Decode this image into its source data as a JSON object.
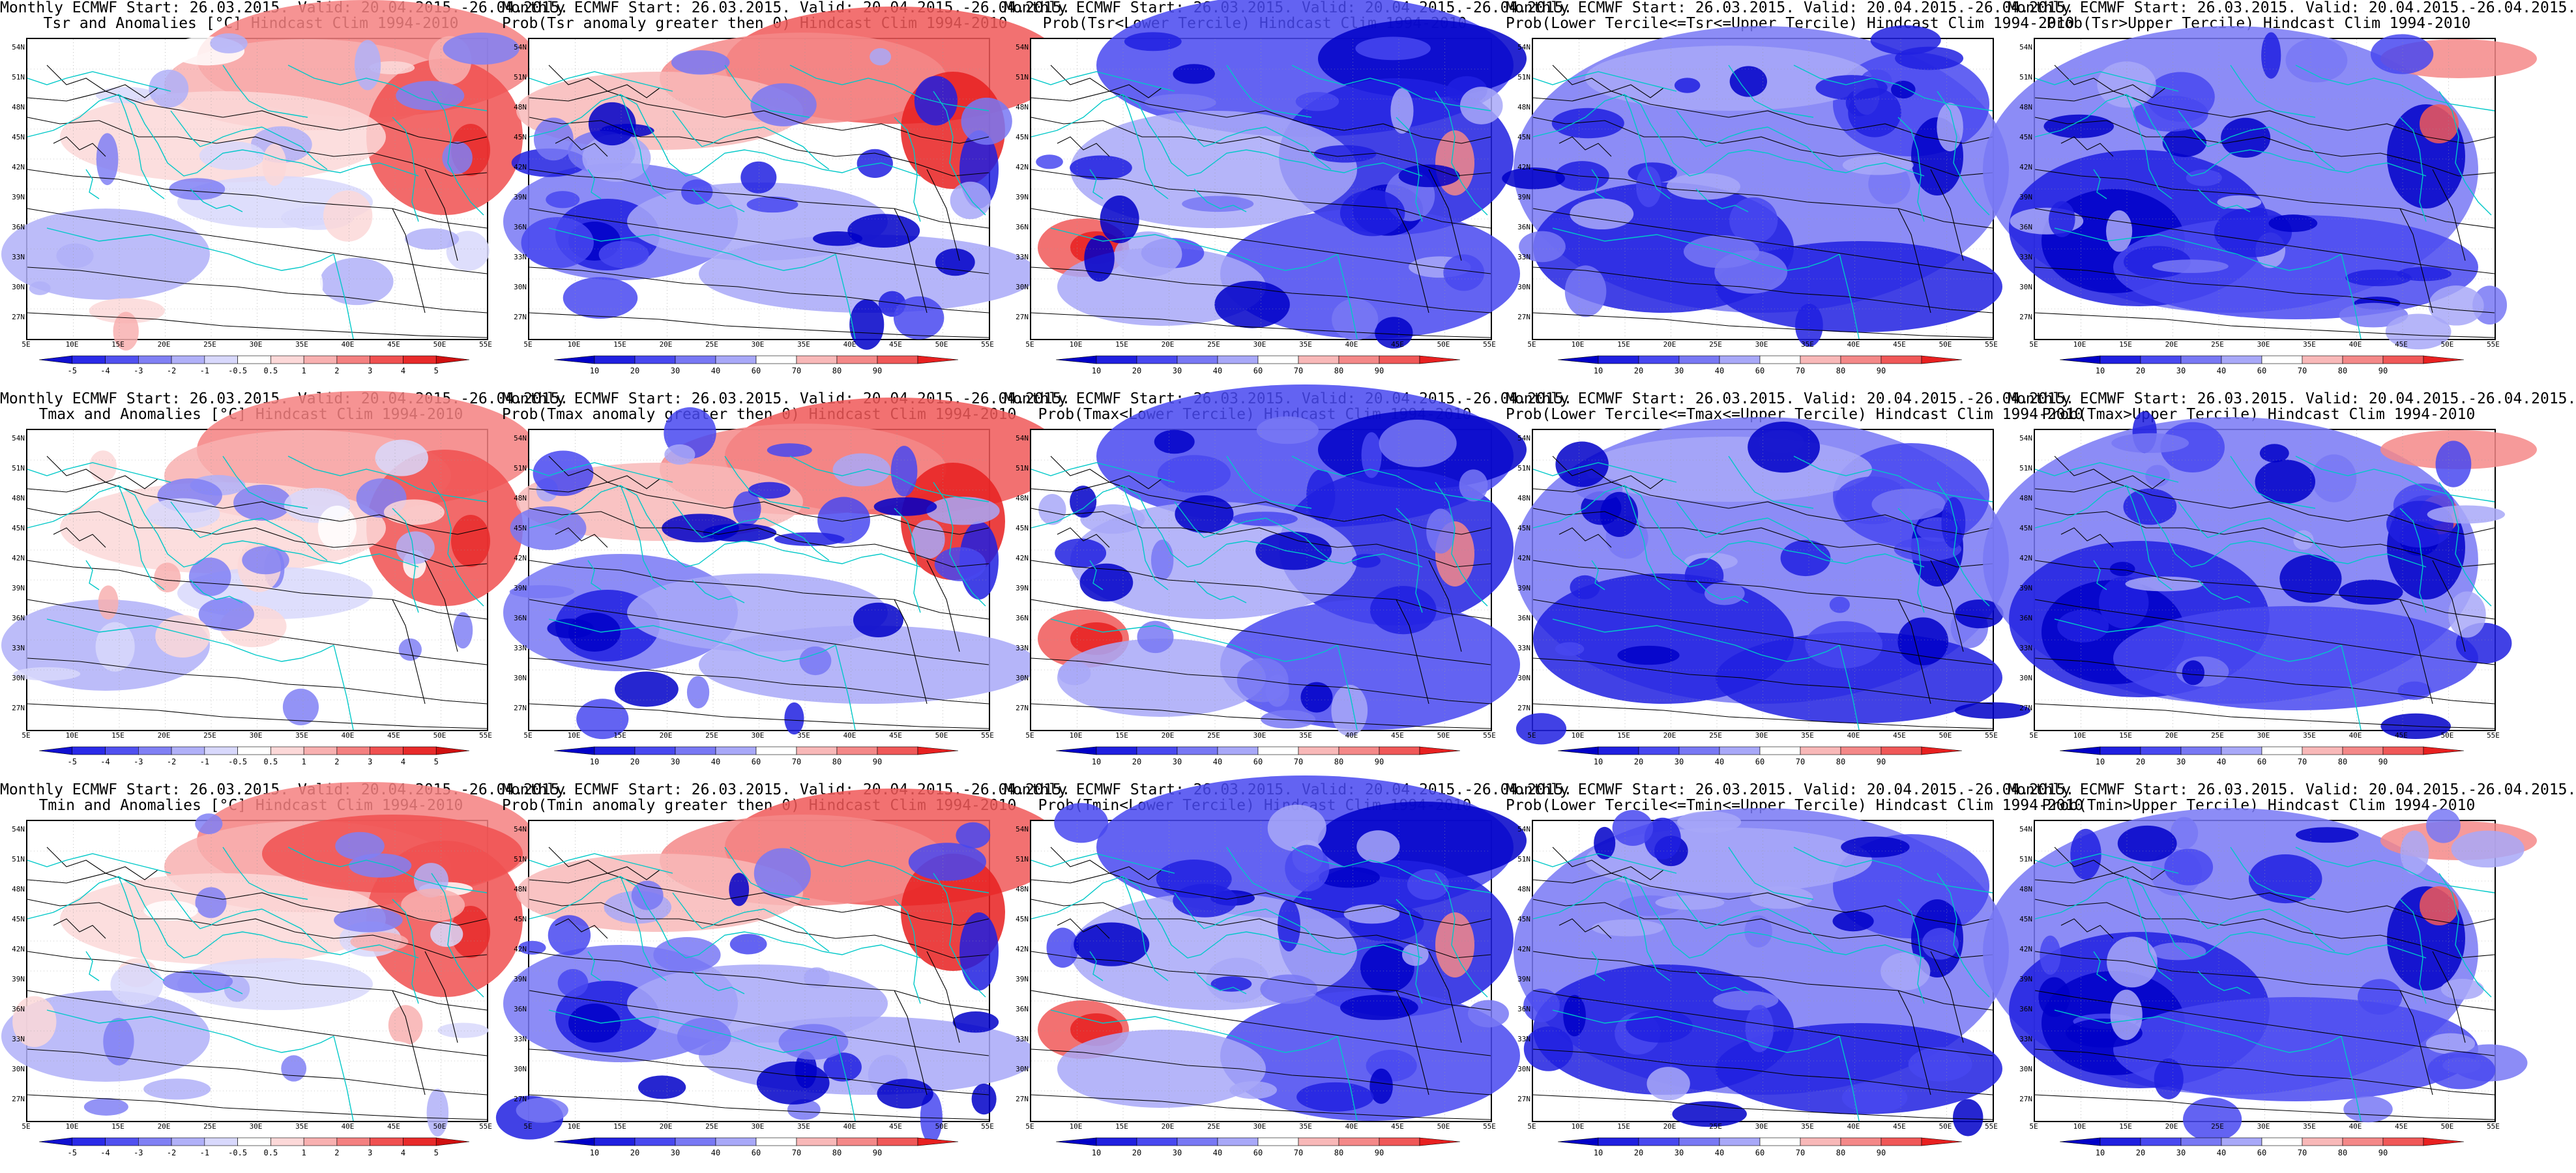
{
  "rows": [
    {
      "variable": "Tsr",
      "panels": [
        {
          "title1": "Monthly ECMWF Start: 26.03.2015. Valid: 20.04.2015.-26.04.2015.",
          "title2": "Tsr and Anomalies [°C] Hindcast Clim 1994-2010",
          "kind": "anomaly"
        },
        {
          "title1": "Monthly ECMWF Start: 26.03.2015. Valid: 20.04.2015.-26.04.2015.",
          "title2": "Prob(Tsr anomaly greater then 0) Hindcast Clim 1994-2010",
          "kind": "prob_gt0"
        },
        {
          "title1": "Monthly ECMWF Start: 26.03.2015. Valid: 20.04.2015.-26.04.2015.",
          "title2": "Prob(Tsr<Lower Tercile) Hindcast Clim 1994-2010",
          "kind": "prob_lower"
        },
        {
          "title1": "Monthly ECMWF Start: 26.03.2015. Valid: 20.04.2015.-26.04.2015.",
          "title2": "Prob(Lower Tercile<=Tsr<=Upper Tercile) Hindcast Clim 1994-2010",
          "kind": "prob_middle"
        },
        {
          "title1": "Monthly ECMWF Start: 26.03.2015. Valid: 20.04.2015.-26.04.2015.",
          "title2": "Prob(Tsr>Upper Tercile) Hindcast Clim 1994-2010",
          "kind": "prob_upper"
        }
      ]
    },
    {
      "variable": "Tmax",
      "panels": [
        {
          "title1": "Monthly ECMWF Start: 26.03.2015. Valid: 20.04.2015.-26.04.2015.",
          "title2": "Tmax and Anomalies [°C] Hindcast Clim 1994-2010",
          "kind": "anomaly"
        },
        {
          "title1": "Monthly ECMWF Start: 26.03.2015. Valid: 20.04.2015.-26.04.2015.",
          "title2": "Prob(Tmax anomaly greater then 0) Hindcast Clim 1994-2010",
          "kind": "prob_gt0"
        },
        {
          "title1": "Monthly ECMWF Start: 26.03.2015. Valid: 20.04.2015.-26.04.2015.",
          "title2": "Prob(Tmax<Lower Tercile) Hindcast Clim 1994-2010",
          "kind": "prob_lower"
        },
        {
          "title1": "Monthly ECMWF Start: 26.03.2015. Valid: 20.04.2015.-26.04.2015.",
          "title2": "Prob(Lower Tercile<=Tmax<=Upper Tercile) Hindcast Clim 1994-2010",
          "kind": "prob_middle"
        },
        {
          "title1": "Monthly ECMWF Start: 26.03.2015. Valid: 20.04.2015.-26.04.2015.",
          "title2": "Prob(Tmax>Upper Tercile) Hindcast Clim 1994-2010",
          "kind": "prob_upper"
        }
      ]
    },
    {
      "variable": "Tmin",
      "panels": [
        {
          "title1": "Monthly ECMWF Start: 26.03.2015. Valid: 20.04.2015.-26.04.2015.",
          "title2": "Tmin and Anomalies [°C] Hindcast Clim 1994-2010",
          "kind": "anomaly"
        },
        {
          "title1": "Monthly ECMWF Start: 26.03.2015. Valid: 20.04.2015.-26.04.2015.",
          "title2": "Prob(Tmin anomaly greater then 0) Hindcast Clim 1994-2010",
          "kind": "prob_gt0"
        },
        {
          "title1": "Monthly ECMWF Start: 26.03.2015. Valid: 20.04.2015.-26.04.2015.",
          "title2": "Prob(Tmin<Lower Tercile) Hindcast Clim 1994-2010",
          "kind": "prob_lower"
        },
        {
          "title1": "Monthly ECMWF Start: 26.03.2015. Valid: 20.04.2015.-26.04.2015.",
          "title2": "Prob(Lower Tercile<=Tmin<=Upper Tercile) Hindcast Clim 1994-2010",
          "kind": "prob_middle"
        },
        {
          "title1": "Monthly ECMWF Start: 26.03.2015. Valid: 20.04.2015.-26.04.2015.",
          "title2": "Prob(Tmin>Upper Tercile) Hindcast Clim 1994-2010",
          "kind": "prob_upper"
        }
      ]
    }
  ],
  "axes": {
    "lat_labels": [
      "54N",
      "51N",
      "48N",
      "45N",
      "42N",
      "39N",
      "36N",
      "33N",
      "30N",
      "27N"
    ],
    "lon_labels": [
      "5E",
      "10E",
      "15E",
      "20E",
      "25E",
      "30E",
      "35E",
      "40E",
      "45E",
      "50E",
      "55E"
    ]
  },
  "colorbars": {
    "anomaly": {
      "labels": [
        "-5",
        "-4",
        "-3",
        "-2",
        "-1",
        "-0.5",
        "0.5",
        "1",
        "2",
        "3",
        "4",
        "5"
      ],
      "colors": [
        "#1010d0",
        "#2a2ae8",
        "#5050f0",
        "#8080f4",
        "#b0b0f8",
        "#d8d8fc",
        "#ffffff",
        "#fcd8d8",
        "#f8b0b0",
        "#f48080",
        "#f05050",
        "#e82a2a",
        "#d01010"
      ]
    },
    "probability": {
      "labels": [
        "10",
        "20",
        "30",
        "40",
        "60",
        "70",
        "80",
        "90"
      ],
      "colors": [
        "#0000c8",
        "#2020e0",
        "#4848f0",
        "#7878f4",
        "#a8a8f8",
        "#ffffff",
        "#f8b8b8",
        "#f48888",
        "#f05858",
        "#e82020"
      ]
    }
  },
  "colors": {
    "contour": "#000000",
    "coastline": "#00c8c8",
    "frame": "#000000"
  }
}
